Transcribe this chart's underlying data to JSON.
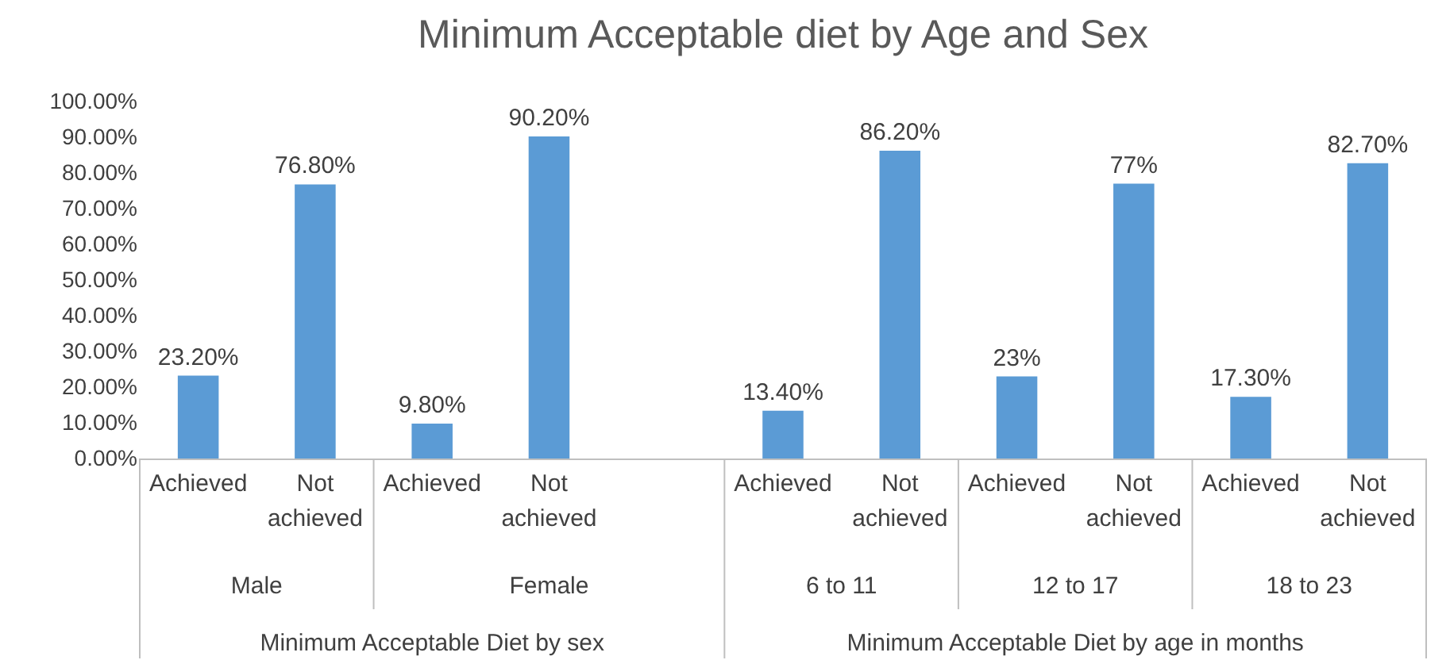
{
  "chart_data": {
    "type": "bar",
    "title": "Minimum Acceptable diet by Age and Sex",
    "categories": [
      "Achieved",
      "Not achieved",
      "Achieved",
      "Not achieved",
      null,
      "Achieved",
      "Not achieved",
      "Achieved",
      "Not achieved",
      "Achieved",
      "Not achieved"
    ],
    "values": [
      23.2,
      76.8,
      9.8,
      90.2,
      null,
      13.4,
      86.2,
      23,
      77,
      17.3,
      82.7
    ],
    "value_labels": [
      "23.20%",
      "76.80%",
      "9.80%",
      "90.20%",
      null,
      "13.40%",
      "86.20%",
      "23%",
      "77%",
      "17.30%",
      "82.70%"
    ],
    "color": "#5b9bd5",
    "ylim": [
      0,
      100
    ],
    "yticks": [
      {
        "value": 0,
        "label": "0.00%"
      },
      {
        "value": 10,
        "label": "10.00%"
      },
      {
        "value": 20,
        "label": "20.00%"
      },
      {
        "value": 30,
        "label": "30.00%"
      },
      {
        "value": 40,
        "label": "40.00%"
      },
      {
        "value": 50,
        "label": "50.00%"
      },
      {
        "value": 60,
        "label": "60.00%"
      },
      {
        "value": 70,
        "label": "70.00%"
      },
      {
        "value": 80,
        "label": "80.00%"
      },
      {
        "value": 90,
        "label": "90.00%"
      },
      {
        "value": 100,
        "label": "100.00%"
      }
    ],
    "annotations": [
      "Male",
      "Female",
      "6 to 11",
      "12 to 17",
      "18 to 23",
      "Minimum Acceptable Diet by sex",
      "Minimum Acceptable Diet by age in months"
    ],
    "grid": false
  }
}
